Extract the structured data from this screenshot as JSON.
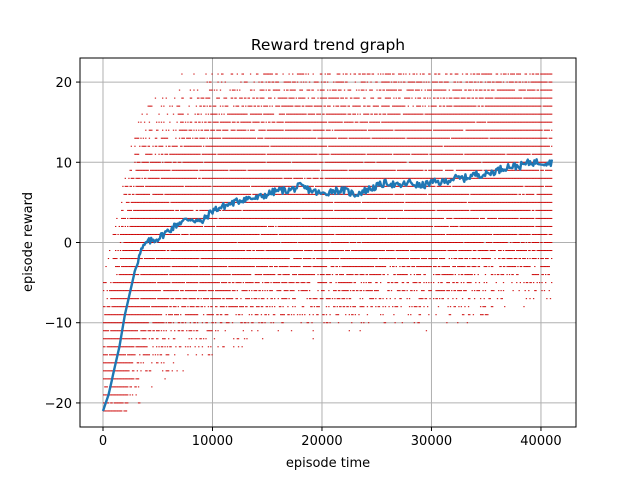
{
  "chart_data": {
    "type": "line",
    "title": "Reward trend graph",
    "xlabel": "episode time",
    "ylabel": "episode reward",
    "xlim": [
      -2100,
      43200
    ],
    "ylim": [
      -23,
      23
    ],
    "x_ticks": [
      0,
      10000,
      20000,
      30000,
      40000
    ],
    "x_tick_labels": [
      "0",
      "10000",
      "20000",
      "30000",
      "40000"
    ],
    "y_ticks": [
      -20,
      -10,
      0,
      10,
      20
    ],
    "y_tick_labels": [
      "−20",
      "−10",
      "0",
      "10",
      "20"
    ],
    "grid": true,
    "colors": {
      "trend": "#1f77b4",
      "scatter": "#cc0000",
      "grid": "#b0b0b0"
    },
    "series": [
      {
        "kind": "line",
        "x": [
          0,
          500,
          1000,
          1500,
          2000,
          2500,
          3000,
          3500,
          4000,
          5000,
          6000,
          7000,
          8000,
          9000,
          10000,
          11000,
          12000,
          13000,
          14000,
          15000,
          16000,
          17000,
          18000,
          19000,
          20000,
          21000,
          22000,
          23000,
          24000,
          25000,
          26000,
          27000,
          28000,
          29000,
          30000,
          31000,
          32000,
          33000,
          34000,
          35000,
          36000,
          37000,
          38000,
          39000,
          40000,
          41000
        ],
        "y": [
          -21,
          -19,
          -16,
          -13,
          -9,
          -6,
          -3,
          -1,
          0,
          0.5,
          1.5,
          2.5,
          3,
          2.5,
          4,
          4.5,
          5,
          5.5,
          5.5,
          6,
          6.5,
          6.5,
          7,
          6.5,
          6,
          6.5,
          6.5,
          6,
          6.5,
          7,
          7.5,
          7,
          7.5,
          7,
          7.5,
          7.5,
          8,
          8,
          8.5,
          8.5,
          9,
          9.5,
          9.5,
          10,
          10,
          10
        ]
      },
      {
        "kind": "scatter",
        "x_start": 0,
        "x_end": 41000,
        "note_levels": [
          -21,
          -20,
          -19,
          -18,
          -17,
          -16,
          -15,
          -14,
          -13,
          -12,
          -11,
          -10,
          -9,
          -8,
          -7,
          -6,
          -5,
          -4,
          -3,
          -2,
          -1,
          0,
          1,
          2,
          3,
          4,
          5,
          6,
          7,
          8,
          9,
          10,
          11,
          12,
          13,
          14,
          15,
          16,
          17,
          18,
          19,
          20,
          21
        ]
      }
    ]
  }
}
